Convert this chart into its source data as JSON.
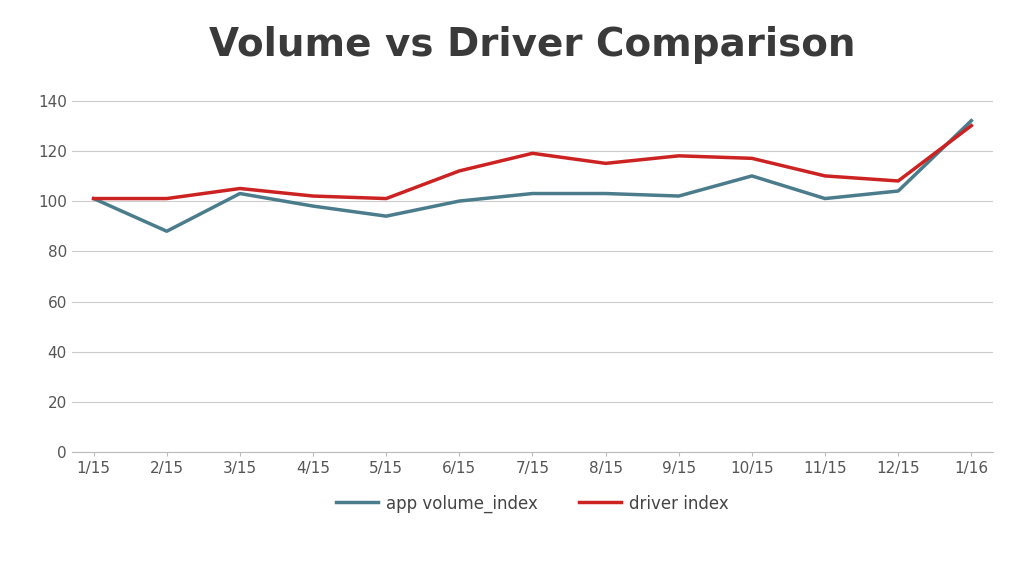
{
  "title": "Volume vs Driver Comparison",
  "x_labels": [
    "1/15",
    "2/15",
    "3/15",
    "4/15",
    "5/15",
    "6/15",
    "7/15",
    "8/15",
    "9/15",
    "10/15",
    "11/15",
    "12/15",
    "1/16"
  ],
  "app_volume_index": [
    101,
    88,
    103,
    98,
    94,
    100,
    103,
    103,
    102,
    110,
    101,
    104,
    132
  ],
  "driver_index": [
    101,
    101,
    105,
    102,
    101,
    112,
    119,
    115,
    118,
    117,
    110,
    108,
    130
  ],
  "app_color": "#4a7c8c",
  "driver_color": "#cc2222",
  "ylim": [
    0,
    150
  ],
  "yticks": [
    0,
    20,
    40,
    60,
    80,
    100,
    120,
    140
  ],
  "background_color": "#ffffff",
  "grid_color": "#cccccc",
  "title_fontsize": 28,
  "tick_fontsize": 11,
  "legend_fontsize": 12,
  "line_width": 2.5,
  "title_color": "#3a3a3a"
}
